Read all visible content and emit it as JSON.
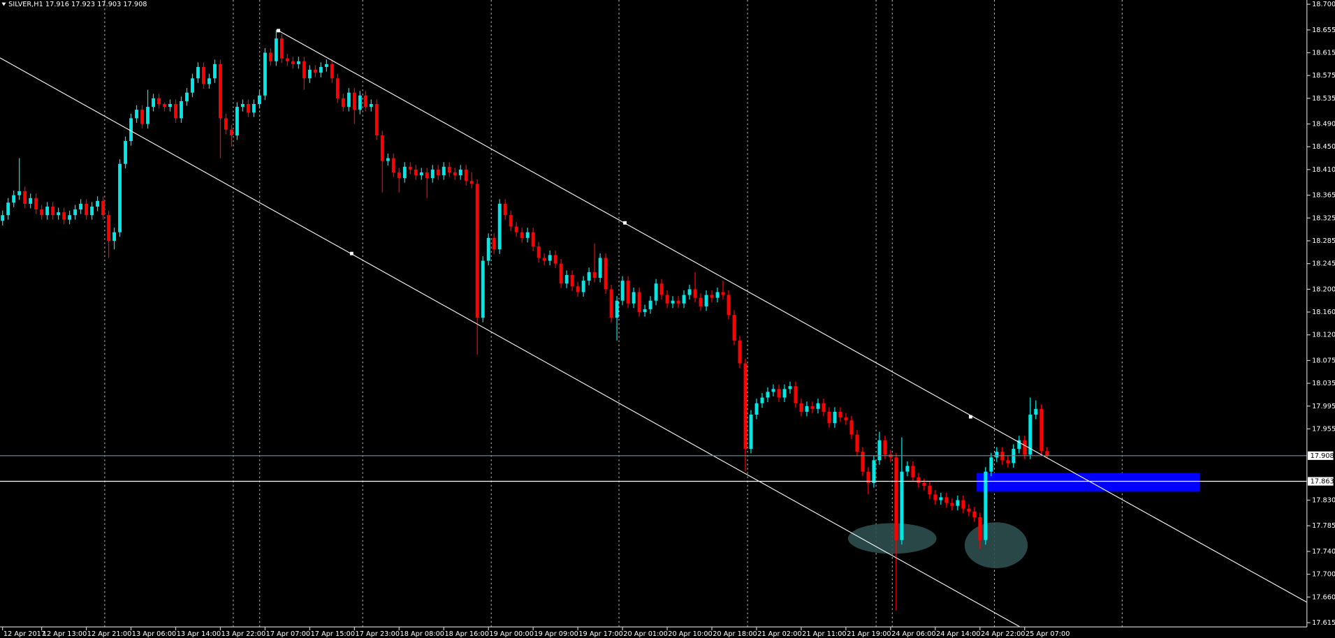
{
  "chart_data": {
    "type": "candlestick",
    "title": "SILVER,H1",
    "title_values": [
      17.916,
      17.923,
      17.903,
      17.908
    ],
    "categories": [
      "12 Apr 2017",
      null,
      null,
      null,
      null,
      null,
      null,
      "12 Apr 13:00",
      null,
      null,
      null,
      null,
      null,
      null,
      null,
      "12 Apr 21:00",
      null,
      null,
      null,
      null,
      null,
      null,
      null,
      "13 Apr 06:00",
      null,
      null,
      null,
      null,
      null,
      null,
      null,
      "13 Apr 14:00",
      null,
      null,
      null,
      null,
      null,
      null,
      null,
      "13 Apr 22:00",
      null,
      null,
      null,
      null,
      null,
      null,
      null,
      "17 Apr 07:00",
      null,
      null,
      null,
      null,
      null,
      null,
      null,
      "17 Apr 15:00",
      null,
      null,
      null,
      null,
      null,
      null,
      null,
      "17 Apr 23:00",
      null,
      null,
      null,
      null,
      null,
      null,
      null,
      "18 Apr 08:00",
      null,
      null,
      null,
      null,
      null,
      null,
      null,
      "18 Apr 16:00",
      null,
      null,
      null,
      null,
      null,
      null,
      null,
      "19 Apr 00:00",
      null,
      null,
      null,
      null,
      null,
      null,
      null,
      "19 Apr 09:00",
      null,
      null,
      null,
      null,
      null,
      null,
      null,
      "19 Apr 17:00",
      null,
      null,
      null,
      null,
      null,
      null,
      null,
      "20 Apr 01:00",
      null,
      null,
      null,
      null,
      null,
      null,
      null,
      "20 Apr 10:00",
      null,
      null,
      null,
      null,
      null,
      null,
      null,
      "20 Apr 18:00",
      null,
      null,
      null,
      null,
      null,
      null,
      null,
      "21 Apr 02:00",
      null,
      null,
      null,
      null,
      null,
      null,
      null,
      "21 Apr 11:00",
      null,
      null,
      null,
      null,
      null,
      null,
      null,
      "21 Apr 19:00",
      null,
      null,
      null,
      null,
      null,
      null,
      null,
      "24 Apr 06:00",
      null,
      null,
      null,
      null,
      null,
      null,
      null,
      "24 Apr 14:00",
      null,
      null,
      null,
      null,
      null,
      null,
      null,
      "24 Apr 22:00",
      null,
      null,
      null,
      null,
      null,
      null,
      null,
      "25 Apr 07:00",
      null,
      null,
      null,
      null
    ],
    "open": [
      18.32,
      18.33,
      18.352,
      18.365,
      18.372,
      18.35,
      18.36,
      18.34,
      18.33,
      18.345,
      18.33,
      18.335,
      18.322,
      18.33,
      18.34,
      18.35,
      18.33,
      18.345,
      18.355,
      18.33,
      18.285,
      18.3,
      18.42,
      18.46,
      18.5,
      18.515,
      18.49,
      18.52,
      18.535,
      18.525,
      18.52,
      18.525,
      18.5,
      18.53,
      18.545,
      18.57,
      18.59,
      18.56,
      18.57,
      18.595,
      18.5,
      18.48,
      18.47,
      18.52,
      18.525,
      18.51,
      18.525,
      18.54,
      18.615,
      18.6,
      18.64,
      18.605,
      18.6,
      18.595,
      18.6,
      18.57,
      18.585,
      18.58,
      18.59,
      18.595,
      18.57,
      18.535,
      18.52,
      18.545,
      18.515,
      18.54,
      18.52,
      18.525,
      18.47,
      18.425,
      18.43,
      18.405,
      18.395,
      18.415,
      18.41,
      18.4,
      18.405,
      18.395,
      18.41,
      18.4,
      18.415,
      18.405,
      18.4,
      18.41,
      18.39,
      18.385,
      18.15,
      18.25,
      18.29,
      18.27,
      18.35,
      18.33,
      18.31,
      18.3,
      18.29,
      18.3,
      18.275,
      18.255,
      18.25,
      18.26,
      18.245,
      18.21,
      18.225,
      18.205,
      18.195,
      18.215,
      18.23,
      18.22,
      18.255,
      18.2,
      18.15,
      18.18,
      18.215,
      18.175,
      18.195,
      18.16,
      18.165,
      18.18,
      18.21,
      18.19,
      18.175,
      18.18,
      18.175,
      18.19,
      18.2,
      18.185,
      18.17,
      18.19,
      18.185,
      18.195,
      18.19,
      18.155,
      18.11,
      18.07,
      17.92,
      17.98,
      18.0,
      18.01,
      18.02,
      18.025,
      18.01,
      18.025,
      18.03,
      18.0,
      17.985,
      17.995,
      17.99,
      18.0,
      17.985,
      17.965,
      17.985,
      17.975,
      17.97,
      17.945,
      17.915,
      17.88,
      17.86,
      17.9,
      17.935,
      17.91,
      17.905,
      17.76,
      17.88,
      17.89,
      17.87,
      17.86,
      17.855,
      17.84,
      17.83,
      17.835,
      17.825,
      17.82,
      17.83,
      17.815,
      17.81,
      17.8,
      17.76,
      17.88,
      17.905,
      17.915,
      17.9,
      17.895,
      17.92,
      17.935,
      17.91,
      17.98,
      17.99,
      17.916
    ],
    "high": [
      18.338,
      18.36,
      18.373,
      18.43,
      18.38,
      18.368,
      18.368,
      18.348,
      18.353,
      18.353,
      18.343,
      18.343,
      18.338,
      18.348,
      18.358,
      18.358,
      18.353,
      18.363,
      18.363,
      18.338,
      18.308,
      18.428,
      18.468,
      18.508,
      18.523,
      18.523,
      18.55,
      18.543,
      18.543,
      18.528,
      18.533,
      18.533,
      18.538,
      18.553,
      18.578,
      18.598,
      18.598,
      18.578,
      18.603,
      18.603,
      18.508,
      18.488,
      18.528,
      18.533,
      18.533,
      18.533,
      18.548,
      18.623,
      18.623,
      18.655,
      18.648,
      18.613,
      18.608,
      18.608,
      18.608,
      18.593,
      18.593,
      18.598,
      18.603,
      18.603,
      18.578,
      18.543,
      18.553,
      18.553,
      18.548,
      18.548,
      18.533,
      18.533,
      18.478,
      18.438,
      18.438,
      18.413,
      18.423,
      18.423,
      18.418,
      18.413,
      18.413,
      18.418,
      18.418,
      18.423,
      18.423,
      18.413,
      18.418,
      18.418,
      18.405,
      18.393,
      18.258,
      18.298,
      18.298,
      18.358,
      18.358,
      18.338,
      18.318,
      18.308,
      18.308,
      18.308,
      18.283,
      18.263,
      18.268,
      18.268,
      18.253,
      18.233,
      18.233,
      18.213,
      18.223,
      18.238,
      18.28,
      18.263,
      18.263,
      18.208,
      18.188,
      18.223,
      18.223,
      18.203,
      18.203,
      18.173,
      18.188,
      18.218,
      18.218,
      18.198,
      18.188,
      18.188,
      18.198,
      18.208,
      18.23,
      18.193,
      18.198,
      18.198,
      18.203,
      18.215,
      18.198,
      18.163,
      18.118,
      18.078,
      17.988,
      18.008,
      18.018,
      18.028,
      18.033,
      18.033,
      18.033,
      18.038,
      18.038,
      18.008,
      18.003,
      18.003,
      18.008,
      18.008,
      17.993,
      17.993,
      17.993,
      17.983,
      17.978,
      17.953,
      17.923,
      17.888,
      17.908,
      17.95,
      17.943,
      17.918,
      17.913,
      17.94,
      17.898,
      17.898,
      17.878,
      17.868,
      17.863,
      17.848,
      17.843,
      17.843,
      17.833,
      17.838,
      17.838,
      17.823,
      17.818,
      17.808,
      17.888,
      17.913,
      17.923,
      17.923,
      17.908,
      17.928,
      17.943,
      17.943,
      18.01,
      18.005,
      17.998,
      17.923
    ],
    "low": [
      18.312,
      18.322,
      18.344,
      18.357,
      18.342,
      18.342,
      18.332,
      18.322,
      18.322,
      18.322,
      18.322,
      18.314,
      18.314,
      18.322,
      18.332,
      18.322,
      18.322,
      18.337,
      18.322,
      18.255,
      18.27,
      18.292,
      18.412,
      18.452,
      18.492,
      18.482,
      18.482,
      18.512,
      18.517,
      18.512,
      18.512,
      18.492,
      18.492,
      18.522,
      18.537,
      18.562,
      18.552,
      18.552,
      18.562,
      18.43,
      18.472,
      18.45,
      18.462,
      18.512,
      18.502,
      18.502,
      18.517,
      18.532,
      18.592,
      18.592,
      18.597,
      18.592,
      18.587,
      18.587,
      18.55,
      18.562,
      18.572,
      18.572,
      18.582,
      18.562,
      18.527,
      18.512,
      18.512,
      18.49,
      18.507,
      18.512,
      18.512,
      18.462,
      18.37,
      18.417,
      18.397,
      18.37,
      18.387,
      18.402,
      18.392,
      18.392,
      18.36,
      18.387,
      18.392,
      18.392,
      18.397,
      18.392,
      18.392,
      18.382,
      18.377,
      18.085,
      18.142,
      18.242,
      18.262,
      18.262,
      18.322,
      18.302,
      18.292,
      18.282,
      18.282,
      18.267,
      18.247,
      18.242,
      18.242,
      18.237,
      18.202,
      18.202,
      18.197,
      18.187,
      18.187,
      18.207,
      18.212,
      18.212,
      18.192,
      18.142,
      18.11,
      18.172,
      18.167,
      18.167,
      18.152,
      18.152,
      18.157,
      18.172,
      18.182,
      18.167,
      18.167,
      18.167,
      18.167,
      18.182,
      18.177,
      18.162,
      18.162,
      18.177,
      18.177,
      18.182,
      18.147,
      18.102,
      18.062,
      17.88,
      17.912,
      17.972,
      17.992,
      18.002,
      18.012,
      18.002,
      18.002,
      18.017,
      17.992,
      17.977,
      17.977,
      17.982,
      17.982,
      17.977,
      17.957,
      17.957,
      17.967,
      17.962,
      17.937,
      17.907,
      17.872,
      17.84,
      17.852,
      17.892,
      17.902,
      17.897,
      17.636,
      17.752,
      17.872,
      17.862,
      17.852,
      17.847,
      17.832,
      17.822,
      17.822,
      17.817,
      17.812,
      17.812,
      17.807,
      17.802,
      17.792,
      17.745,
      17.752,
      17.872,
      17.897,
      17.892,
      17.887,
      17.887,
      17.912,
      17.902,
      17.902,
      17.972,
      17.91,
      17.903
    ],
    "close": [
      18.33,
      18.352,
      18.365,
      18.372,
      18.35,
      18.36,
      18.34,
      18.33,
      18.345,
      18.33,
      18.335,
      18.322,
      18.33,
      18.34,
      18.35,
      18.33,
      18.345,
      18.355,
      18.33,
      18.285,
      18.3,
      18.42,
      18.46,
      18.5,
      18.515,
      18.49,
      18.52,
      18.535,
      18.525,
      18.52,
      18.525,
      18.5,
      18.53,
      18.545,
      18.57,
      18.59,
      18.56,
      18.57,
      18.595,
      18.5,
      18.48,
      18.47,
      18.52,
      18.525,
      18.51,
      18.525,
      18.54,
      18.615,
      18.6,
      18.64,
      18.605,
      18.6,
      18.595,
      18.6,
      18.57,
      18.585,
      18.58,
      18.59,
      18.595,
      18.57,
      18.535,
      18.52,
      18.545,
      18.515,
      18.54,
      18.52,
      18.525,
      18.47,
      18.425,
      18.43,
      18.405,
      18.395,
      18.415,
      18.41,
      18.4,
      18.405,
      18.395,
      18.41,
      18.4,
      18.415,
      18.405,
      18.4,
      18.41,
      18.39,
      18.385,
      18.15,
      18.25,
      18.29,
      18.27,
      18.35,
      18.33,
      18.31,
      18.3,
      18.29,
      18.3,
      18.275,
      18.255,
      18.25,
      18.26,
      18.245,
      18.21,
      18.225,
      18.205,
      18.195,
      18.215,
      18.23,
      18.22,
      18.255,
      18.2,
      18.15,
      18.18,
      18.215,
      18.175,
      18.195,
      18.16,
      18.165,
      18.18,
      18.21,
      18.19,
      18.175,
      18.18,
      18.175,
      18.19,
      18.2,
      18.185,
      18.17,
      18.19,
      18.185,
      18.195,
      18.19,
      18.155,
      18.11,
      18.07,
      17.92,
      17.98,
      18.0,
      18.01,
      18.02,
      18.025,
      18.01,
      18.025,
      18.03,
      18.0,
      17.985,
      17.995,
      17.99,
      18.0,
      17.985,
      17.965,
      17.985,
      17.975,
      17.97,
      17.945,
      17.915,
      17.88,
      17.86,
      17.9,
      17.935,
      17.91,
      17.905,
      17.76,
      17.88,
      17.89,
      17.87,
      17.86,
      17.855,
      17.84,
      17.83,
      17.835,
      17.825,
      17.82,
      17.83,
      17.815,
      17.81,
      17.8,
      17.76,
      17.88,
      17.905,
      17.915,
      17.9,
      17.895,
      17.92,
      17.935,
      17.91,
      17.98,
      17.99,
      17.916,
      17.908
    ],
    "up_color": "#00e8e8",
    "down_color": "#ff0000",
    "ylim": [
      17.609,
      18.7075
    ],
    "yticks": [
      {
        "value": 18.7,
        "label": "18.700"
      },
      18.655,
      18.615,
      18.575,
      18.535,
      {
        "value": 18.49,
        "label": "18.490"
      },
      {
        "value": 18.45,
        "label": "18.450"
      },
      {
        "value": 18.41,
        "label": "18.410"
      },
      18.365,
      18.325,
      18.285,
      18.245,
      {
        "value": 18.2,
        "label": "18.200"
      },
      {
        "value": 18.16,
        "label": "18.160"
      },
      {
        "value": 18.12,
        "label": "18.120"
      },
      18.075,
      18.035,
      17.995,
      17.955,
      {
        "value": 17.83,
        "label": "17.830"
      },
      17.785,
      {
        "value": 17.74,
        "label": "17.740"
      },
      {
        "value": 17.7,
        "label": "17.700"
      },
      {
        "value": 17.66,
        "label": "17.660"
      },
      17.615
    ],
    "hlines": [
      {
        "value": 17.908,
        "color": "#7a8a9a"
      },
      {
        "value": 17.863,
        "color": "#ffffff"
      }
    ]
  }
}
